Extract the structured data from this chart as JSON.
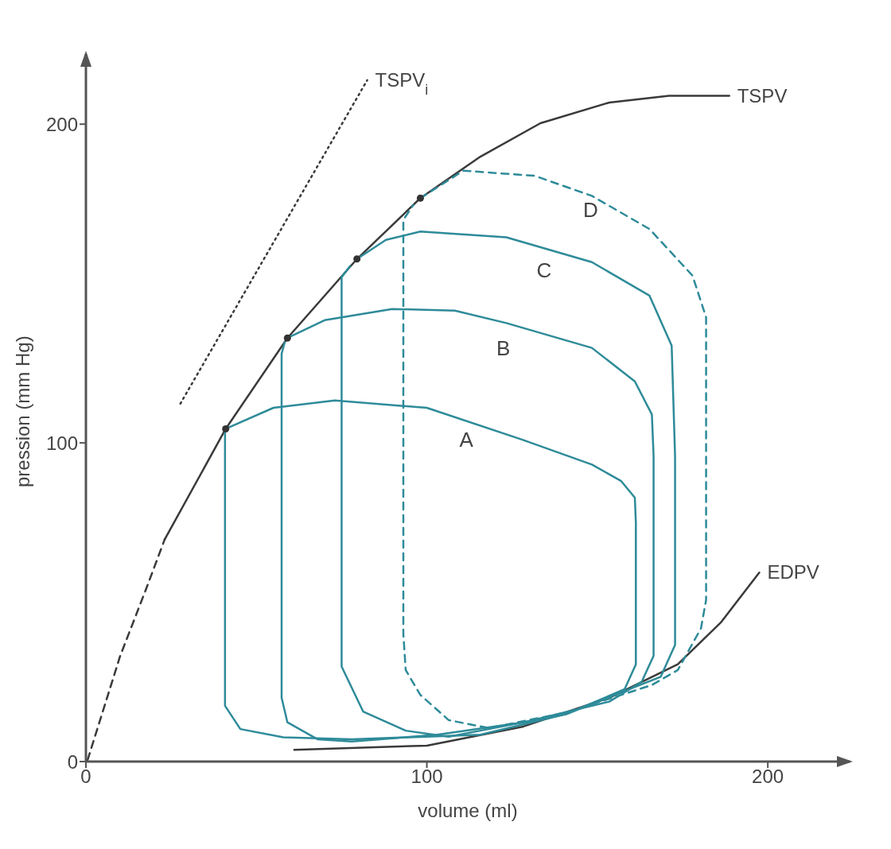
{
  "chart_data": {
    "type": "line",
    "xlabel": "volume (ml)",
    "ylabel": "pression (mm Hg)",
    "xlim": [
      0,
      224
    ],
    "ylim": [
      0,
      222
    ],
    "xticks": [
      0,
      100,
      200
    ],
    "yticks": [
      0,
      100,
      200
    ],
    "series": [
      {
        "name": "TSPV",
        "color": "#3a3a3a",
        "line_style": "solid",
        "x": [
          23.1,
          41,
          59.1,
          79.5,
          98.1,
          115.7,
          133.3,
          153.5,
          171,
          188.7
        ],
        "values": [
          69.7,
          104.4,
          132.9,
          157.7,
          176.8,
          189.8,
          200.3,
          206.8,
          208.9,
          208.9
        ]
      },
      {
        "color": "#3a3a3a",
        "line_style": "dashed",
        "x": [
          0.5,
          10,
          17.6,
          23.1
        ],
        "values": [
          0.5,
          33,
          54,
          69.7
        ]
      },
      {
        "name": "TSPV$_{i}$",
        "color": "#3a3a3a",
        "line_style": "dotted",
        "x": [
          27.7,
          82.5
        ],
        "values": [
          112.3,
          213.8
        ]
      },
      {
        "name": "EDPV",
        "color": "#3a3a3a",
        "line_style": "solid",
        "x": [
          61.1,
          100,
          128.3,
          153.5,
          173.6,
          186.2,
          197.5
        ],
        "values": [
          3.7,
          5,
          11,
          20,
          30.5,
          43.6,
          59.3
        ]
      },
      {
        "name": "A",
        "color": "#2e8b99",
        "line_style": "solid",
        "x": [
          41,
          55,
          73,
          100,
          128,
          148.4,
          157,
          161,
          161.3,
          161.3,
          158,
          140.9,
          115.7,
          78,
          57.9,
          45.3,
          40.8,
          40.8
        ],
        "values": [
          104.4,
          111,
          113.3,
          111,
          101,
          93.2,
          88,
          82.8,
          75,
          30.5,
          22.7,
          14.9,
          8.4,
          7,
          7.6,
          10.2,
          17.5,
          104.4
        ]
      },
      {
        "name": "B",
        "color": "#2e8b99",
        "line_style": "solid",
        "x": [
          59.1,
          70,
          89.8,
          108.2,
          123.3,
          148.4,
          161,
          166,
          166.5,
          166.5,
          163,
          153.5,
          128.3,
          103,
          78,
          67.9,
          59.1,
          57.4,
          57.4,
          58.3
        ],
        "values": [
          132.9,
          138.5,
          142,
          141.5,
          137.6,
          129.8,
          119.3,
          108.9,
          95.8,
          33.2,
          25,
          18.8,
          12.3,
          8.4,
          6.3,
          7,
          12.3,
          20,
          128,
          131.5
        ]
      },
      {
        "name": "C",
        "color": "#2e8b99",
        "line_style": "solid",
        "x": [
          79.5,
          88,
          98.1,
          123.3,
          148.4,
          165.3,
          171.8,
          172.8,
          172.8,
          168.6,
          140.9,
          115.7,
          106.4,
          93.8,
          81.3,
          75,
          75,
          77.5
        ],
        "values": [
          157.7,
          163.7,
          166.3,
          164.5,
          156.7,
          146.2,
          130.5,
          95.8,
          36.6,
          26.6,
          14.9,
          9.7,
          7.8,
          9.7,
          15.7,
          29.8,
          152,
          155.5
        ]
      },
      {
        "name": "D",
        "color": "#2e8b99",
        "line_style": "dashed",
        "x": [
          98.1,
          110.7,
          131.6,
          148.4,
          165.3,
          177.9,
          181.9,
          181.9,
          181.9,
          180.4,
          173.6,
          166,
          140.9,
          118.2,
          106.4,
          98.1,
          93.8,
          93.1,
          93.1,
          96
        ],
        "values": [
          176.8,
          185.4,
          183.8,
          177.5,
          167.1,
          152.5,
          139.4,
          95.8,
          50.7,
          41.8,
          28.7,
          24,
          15.4,
          10.5,
          13,
          20.9,
          28.7,
          40,
          170,
          174.6
        ]
      },
      {
        "type": "scatter",
        "marker": "circle",
        "color": "#333333",
        "x": [
          41,
          59.1,
          79.5,
          98.1
        ],
        "values": [
          104.4,
          132.9,
          157.7,
          176.8
        ]
      }
    ]
  }
}
